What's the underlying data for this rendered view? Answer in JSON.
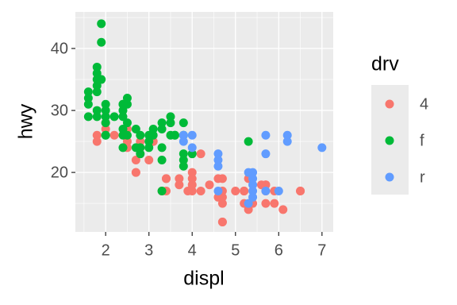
{
  "chart_data": {
    "type": "scatter",
    "x_label": "displ",
    "y_label": "hwy",
    "legend_title": "drv",
    "xlim": [
      1.3,
      7.26
    ],
    "ylim": [
      10.4,
      45.9
    ],
    "xticks": [
      2,
      3,
      4,
      5,
      6,
      7
    ],
    "yticks": [
      20,
      30,
      40
    ],
    "grid": true,
    "legend": "right",
    "series": [
      {
        "name": "4",
        "color": "#F8766D",
        "x": [
          1.8,
          1.8,
          2.0,
          2.0,
          2.8,
          3.1,
          2.8,
          3.1,
          4.2,
          5.3,
          5.3,
          5.7,
          6.5,
          3.7,
          3.7,
          3.9,
          4.7,
          4.7,
          5.2,
          5.2,
          4.7,
          5.2,
          5.7,
          5.9,
          4.7,
          4.7,
          5.7,
          5.9,
          4.0,
          4.0,
          4.6,
          5.0,
          4.2,
          4.6,
          5.4,
          3.0,
          4.0,
          5.7,
          6.1,
          4.4,
          3.3,
          5.6,
          2.5,
          2.5,
          2.5,
          2.2,
          2.7,
          3.4,
          3.4,
          2.7,
          2.7,
          3.4,
          4.0,
          4.7,
          6.5
        ],
        "values": [
          26,
          25,
          28,
          27,
          25,
          25,
          24,
          25,
          23,
          19,
          14,
          15,
          17,
          19,
          18,
          17,
          19,
          12,
          17,
          15,
          17,
          17,
          18,
          15,
          16,
          12,
          17,
          17,
          17,
          19,
          19,
          17,
          17,
          16,
          15,
          22,
          20,
          18,
          14,
          18,
          17,
          18,
          25,
          24,
          27,
          26,
          20,
          19,
          17,
          22,
          20,
          19,
          18,
          15,
          17
        ]
      },
      {
        "name": "f",
        "color": "#00BA38",
        "x": [
          1.8,
          2.0,
          2.0,
          2.8,
          3.1,
          2.4,
          2.4,
          3.1,
          3.5,
          3.6,
          2.4,
          3.0,
          3.3,
          3.3,
          3.3,
          3.8,
          3.8,
          3.8,
          4.0,
          1.6,
          1.6,
          1.6,
          1.8,
          1.8,
          2.0,
          2.4,
          2.4,
          2.5,
          3.3,
          2.0,
          2.0,
          2.7,
          2.7,
          2.4,
          2.5,
          2.5,
          3.5,
          3.0,
          3.8,
          3.8,
          5.3,
          2.2,
          2.4,
          3.0,
          3.5,
          3.3,
          1.8,
          1.8,
          1.8,
          1.8,
          1.9,
          1.9,
          2.0,
          2.5,
          2.8,
          2.8,
          3.6,
          1.6,
          1.9
        ],
        "values": [
          29,
          31,
          30,
          26,
          27,
          27,
          30,
          26,
          29,
          26,
          24,
          24,
          22,
          17,
          24,
          22,
          21,
          23,
          23,
          33,
          32,
          29,
          34,
          36,
          29,
          26,
          31,
          26,
          28,
          28,
          26,
          27,
          24,
          29,
          31,
          32,
          26,
          25,
          26,
          28,
          25,
          29,
          31,
          26,
          28,
          27,
          30,
          33,
          35,
          37,
          44,
          41,
          26,
          28,
          24,
          23,
          26,
          31,
          35
        ]
      },
      {
        "name": "r",
        "color": "#619CFF",
        "x": [
          5.3,
          5.3,
          5.7,
          6.0,
          5.7,
          5.7,
          6.2,
          6.2,
          7.0,
          4.6,
          5.4,
          5.4,
          3.8,
          3.8,
          4.0,
          4.0,
          4.6,
          4.6,
          4.6,
          5.4,
          5.4,
          5.4
        ],
        "values": [
          20,
          15,
          17,
          17,
          26,
          23,
          26,
          25,
          24,
          17,
          17,
          18,
          26,
          25,
          26,
          24,
          21,
          22,
          23,
          20,
          16,
          19
        ]
      }
    ]
  }
}
